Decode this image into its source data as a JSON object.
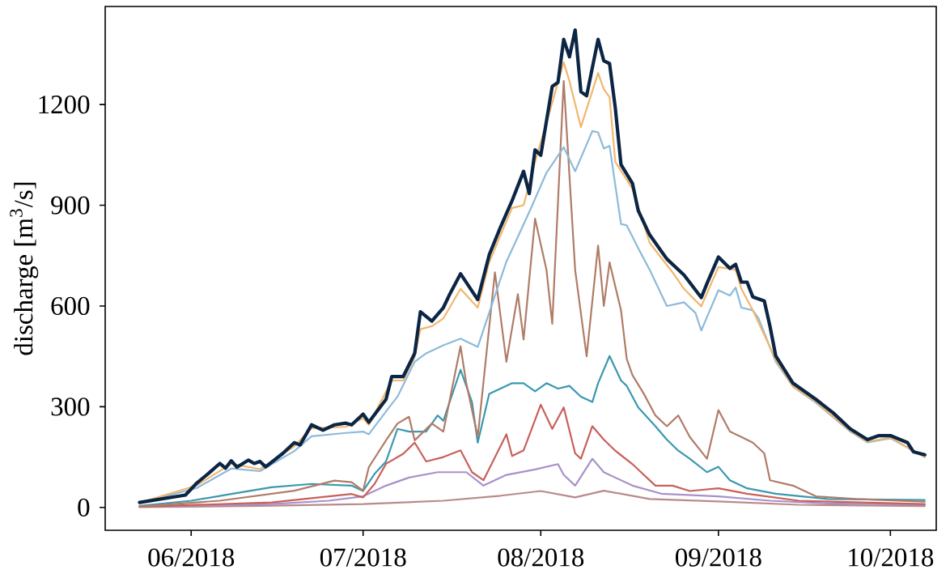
{
  "chart_data": {
    "type": "line",
    "ylabel": "discharge [m$^{3}$/s]",
    "xlim": [
      "2018-05-17",
      "2018-10-09"
    ],
    "ylim": [
      -68,
      1492
    ],
    "xticks": [
      {
        "value": "2018-06-01",
        "label": "06/2018"
      },
      {
        "value": "2018-07-01",
        "label": "07/2018"
      },
      {
        "value": "2018-08-01",
        "label": "08/2018"
      },
      {
        "value": "2018-09-01",
        "label": "09/2018"
      },
      {
        "value": "2018-10-01",
        "label": "10/2018"
      }
    ],
    "yticks": [
      0,
      300,
      600,
      900,
      1200
    ],
    "series": [
      {
        "color": "#b88a8a",
        "x": [
          "2018-05-23",
          "2018-06-15",
          "2018-07-01",
          "2018-07-15",
          "2018-07-25",
          "2018-08-01",
          "2018-08-07",
          "2018-08-12",
          "2018-08-20",
          "2018-09-01",
          "2018-09-15",
          "2018-10-07"
        ],
        "values": [
          1,
          5,
          10,
          20,
          35,
          49,
          30,
          50,
          25,
          18,
          8,
          4
        ]
      },
      {
        "color": "#a891c9",
        "x": [
          "2018-05-23",
          "2018-06-15",
          "2018-06-25",
          "2018-07-01",
          "2018-07-05",
          "2018-07-09",
          "2018-07-14",
          "2018-07-19",
          "2018-07-22",
          "2018-07-26",
          "2018-07-31",
          "2018-08-04",
          "2018-08-05",
          "2018-08-07",
          "2018-08-10",
          "2018-08-12",
          "2018-08-17",
          "2018-08-22",
          "2018-09-01",
          "2018-09-10",
          "2018-09-20",
          "2018-10-07"
        ],
        "values": [
          2,
          10,
          20,
          33,
          65,
          89,
          105,
          105,
          65,
          97,
          113,
          129,
          97,
          65,
          145,
          105,
          65,
          41,
          33,
          20,
          12,
          8
        ]
      },
      {
        "color": "#c8605a",
        "x": [
          "2018-05-23",
          "2018-06-15",
          "2018-06-29",
          "2018-07-01",
          "2018-07-03",
          "2018-07-05",
          "2018-07-08",
          "2018-07-10",
          "2018-07-12",
          "2018-07-15",
          "2018-07-18",
          "2018-07-20",
          "2018-07-22",
          "2018-07-26",
          "2018-07-27",
          "2018-07-29",
          "2018-08-01",
          "2018-08-03",
          "2018-08-05",
          "2018-08-07",
          "2018-08-08",
          "2018-08-10",
          "2018-08-12",
          "2018-08-14",
          "2018-08-17",
          "2018-08-18",
          "2018-08-21",
          "2018-08-24",
          "2018-08-27",
          "2018-09-01",
          "2018-09-06",
          "2018-09-15",
          "2018-10-07"
        ],
        "values": [
          2,
          15,
          40,
          30,
          70,
          130,
          160,
          193,
          137,
          150,
          170,
          105,
          81,
          218,
          153,
          170,
          306,
          234,
          298,
          161,
          145,
          242,
          202,
          169,
          129,
          113,
          65,
          65,
          49,
          57,
          41,
          20,
          10
        ]
      },
      {
        "color": "#3a98b0",
        "x": [
          "2018-05-23",
          "2018-06-01",
          "2018-06-08",
          "2018-06-15",
          "2018-06-22",
          "2018-06-29",
          "2018-07-01",
          "2018-07-03",
          "2018-07-05",
          "2018-07-07",
          "2018-07-09",
          "2018-07-12",
          "2018-07-14",
          "2018-07-15",
          "2018-07-18",
          "2018-07-20",
          "2018-07-21",
          "2018-07-23",
          "2018-07-27",
          "2018-07-29",
          "2018-07-31",
          "2018-08-02",
          "2018-08-04",
          "2018-08-06",
          "2018-08-08",
          "2018-08-10",
          "2018-08-11",
          "2018-08-13",
          "2018-08-15",
          "2018-08-16",
          "2018-08-18",
          "2018-08-21",
          "2018-08-23",
          "2018-08-25",
          "2018-08-27",
          "2018-08-30",
          "2018-09-01",
          "2018-09-03",
          "2018-09-06",
          "2018-09-11",
          "2018-09-20",
          "2018-10-07"
        ],
        "values": [
          5,
          20,
          40,
          60,
          70,
          65,
          49,
          100,
          137,
          234,
          226,
          226,
          274,
          258,
          410,
          314,
          193,
          338,
          370,
          370,
          346,
          370,
          354,
          362,
          330,
          314,
          370,
          451,
          378,
          362,
          298,
          242,
          202,
          169,
          145,
          105,
          121,
          81,
          57,
          41,
          25,
          22
        ]
      },
      {
        "color": "#b07c68",
        "x": [
          "2018-05-23",
          "2018-06-06",
          "2018-06-19",
          "2018-06-26",
          "2018-06-29",
          "2018-07-01",
          "2018-07-02",
          "2018-07-05",
          "2018-07-07",
          "2018-07-09",
          "2018-07-10",
          "2018-07-13",
          "2018-07-15",
          "2018-07-18",
          "2018-07-19",
          "2018-07-21",
          "2018-07-24",
          "2018-07-26",
          "2018-07-28",
          "2018-07-29",
          "2018-07-31",
          "2018-08-02",
          "2018-08-03",
          "2018-08-05",
          "2018-08-07",
          "2018-08-09",
          "2018-08-11",
          "2018-08-12",
          "2018-08-13",
          "2018-08-15",
          "2018-08-16",
          "2018-08-17",
          "2018-08-19",
          "2018-08-21",
          "2018-08-23",
          "2018-08-25",
          "2018-08-27",
          "2018-08-30",
          "2018-09-01",
          "2018-09-03",
          "2018-09-05",
          "2018-09-07",
          "2018-09-09",
          "2018-09-10",
          "2018-09-14",
          "2018-09-18",
          "2018-09-25",
          "2018-10-07"
        ],
        "values": [
          3,
          20,
          50,
          80,
          75,
          50,
          120,
          200,
          250,
          270,
          200,
          250,
          226,
          480,
          370,
          210,
          700,
          434,
          635,
          500,
          860,
          707,
          547,
          1270,
          707,
          450,
          780,
          600,
          730,
          587,
          442,
          394,
          338,
          274,
          242,
          274,
          210,
          145,
          290,
          226,
          210,
          193,
          161,
          81,
          65,
          33,
          25,
          17
        ]
      },
      {
        "color": "#8dbad9",
        "x": [
          "2018-05-23",
          "2018-06-02",
          "2018-06-08",
          "2018-06-13",
          "2018-06-19",
          "2018-06-22",
          "2018-06-28",
          "2018-07-01",
          "2018-07-02",
          "2018-07-05",
          "2018-07-07",
          "2018-07-10",
          "2018-07-12",
          "2018-07-15",
          "2018-07-18",
          "2018-07-21",
          "2018-07-24",
          "2018-07-26",
          "2018-07-30",
          "2018-08-02",
          "2018-08-05",
          "2018-08-07",
          "2018-08-10",
          "2018-08-11",
          "2018-08-12",
          "2018-08-13",
          "2018-08-15",
          "2018-08-16",
          "2018-08-18",
          "2018-08-20",
          "2018-08-23",
          "2018-08-26",
          "2018-08-28",
          "2018-08-29",
          "2018-08-30",
          "2018-09-01",
          "2018-09-03",
          "2018-09-04",
          "2018-09-05",
          "2018-09-07",
          "2018-09-08",
          "2018-09-11",
          "2018-09-14",
          "2018-09-18",
          "2018-09-24",
          "2018-09-27",
          "2018-10-01",
          "2018-10-07"
        ],
        "values": [
          13,
          58,
          116,
          108,
          168,
          212,
          222,
          226,
          218,
          286,
          330,
          434,
          459,
          483,
          503,
          478,
          631,
          732,
          880,
          997,
          1073,
          1001,
          1121,
          1117,
          1069,
          1077,
          844,
          840,
          772,
          708,
          600,
          611,
          579,
          527,
          567,
          647,
          631,
          655,
          595,
          587,
          563,
          434,
          360,
          312,
          226,
          194,
          206,
          150
        ]
      },
      {
        "color": "#f2b66d",
        "x": [
          "2018-05-23",
          "2018-06-02",
          "2018-06-08",
          "2018-06-13",
          "2018-06-19",
          "2018-06-22",
          "2018-06-28",
          "2018-07-01",
          "2018-07-02",
          "2018-07-06",
          "2018-07-08",
          "2018-07-10",
          "2018-07-11",
          "2018-07-13",
          "2018-07-15",
          "2018-07-18",
          "2018-07-21",
          "2018-07-23",
          "2018-07-25",
          "2018-07-27",
          "2018-07-29",
          "2018-07-31",
          "2018-08-03",
          "2018-08-05",
          "2018-08-06",
          "2018-08-08",
          "2018-08-11",
          "2018-08-12",
          "2018-08-13",
          "2018-08-14",
          "2018-08-17",
          "2018-08-20",
          "2018-08-24",
          "2018-08-26",
          "2018-08-29",
          "2018-09-01",
          "2018-09-04",
          "2018-09-05",
          "2018-09-07",
          "2018-09-11",
          "2018-09-14",
          "2018-09-18",
          "2018-09-24",
          "2018-09-27",
          "2018-10-01",
          "2018-10-07"
        ],
        "values": [
          14,
          66,
          130,
          114,
          182,
          236,
          240,
          266,
          246,
          378,
          378,
          448,
          531,
          540,
          563,
          651,
          595,
          730,
          812,
          892,
          900,
          1029,
          1206,
          1326,
          1270,
          1133,
          1294,
          1246,
          1222,
          1029,
          949,
          788,
          700,
          651,
          599,
          716,
          708,
          651,
          587,
          440,
          360,
          315,
          228,
          196,
          208,
          150
        ]
      },
      {
        "color": "#0b2545",
        "x": [
          "2018-05-23",
          "2018-05-31",
          "2018-06-02",
          "2018-06-04",
          "2018-06-06",
          "2018-06-07",
          "2018-06-08",
          "2018-06-09",
          "2018-06-11",
          "2018-06-12",
          "2018-06-13",
          "2018-06-14",
          "2018-06-17",
          "2018-06-19",
          "2018-06-20",
          "2018-06-22",
          "2018-06-24",
          "2018-06-26",
          "2018-06-28",
          "2018-06-29",
          "2018-07-01",
          "2018-07-02",
          "2018-07-05",
          "2018-07-06",
          "2018-07-08",
          "2018-07-10",
          "2018-07-11",
          "2018-07-13",
          "2018-07-15",
          "2018-07-16",
          "2018-07-18",
          "2018-07-21",
          "2018-07-23",
          "2018-07-25",
          "2018-07-27",
          "2018-07-29",
          "2018-07-30",
          "2018-07-31",
          "2018-08-01",
          "2018-08-03",
          "2018-08-04",
          "2018-08-05",
          "2018-08-06",
          "2018-08-07",
          "2018-08-08",
          "2018-08-09",
          "2018-08-11",
          "2018-08-12",
          "2018-08-13",
          "2018-08-14",
          "2018-08-15",
          "2018-08-17",
          "2018-08-18",
          "2018-08-20",
          "2018-08-22",
          "2018-08-23",
          "2018-08-26",
          "2018-08-29",
          "2018-08-30",
          "2018-09-01",
          "2018-09-03",
          "2018-09-04",
          "2018-09-05",
          "2018-09-06",
          "2018-09-07",
          "2018-09-09",
          "2018-09-10",
          "2018-09-11",
          "2018-09-14",
          "2018-09-18",
          "2018-09-21",
          "2018-09-24",
          "2018-09-27",
          "2018-09-29",
          "2018-10-01",
          "2018-10-04",
          "2018-10-05",
          "2018-10-07"
        ],
        "values": [
          15,
          37,
          73,
          101,
          131,
          117,
          139,
          120,
          141,
          131,
          137,
          121,
          161,
          193,
          186,
          246,
          230,
          246,
          251,
          246,
          278,
          254,
          322,
          390,
          390,
          459,
          583,
          555,
          595,
          631,
          696,
          619,
          752,
          836,
          914,
          1001,
          935,
          1065,
          1049,
          1254,
          1266,
          1394,
          1342,
          1422,
          1238,
          1226,
          1394,
          1330,
          1322,
          1190,
          1021,
          965,
          884,
          812,
          764,
          740,
          692,
          625,
          667,
          746,
          712,
          724,
          671,
          671,
          627,
          615,
          539,
          451,
          370,
          322,
          282,
          234,
          202,
          214,
          214,
          193,
          166,
          157
        ]
      }
    ]
  }
}
